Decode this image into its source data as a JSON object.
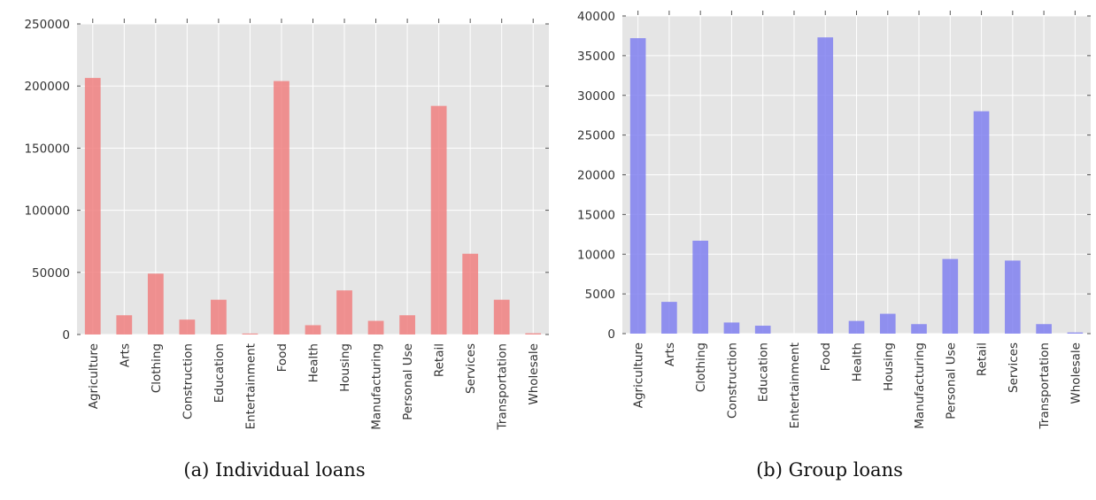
{
  "chart_data": [
    {
      "type": "bar",
      "title": "",
      "caption": "(a) Individual loans",
      "xlabel": "",
      "ylabel": "",
      "color": "#f08080",
      "grid": true,
      "ylim": [
        0,
        250000
      ],
      "yticks": [
        "0",
        "50000",
        "100000",
        "150000",
        "200000",
        "250000"
      ],
      "categories": [
        "Agriculture",
        "Arts",
        "Clothing",
        "Construction",
        "Education",
        "Entertainment",
        "Food",
        "Health",
        "Housing",
        "Manufacturing",
        "Personal Use",
        "Retail",
        "Services",
        "Transportation",
        "Wholesale"
      ],
      "values": [
        206500,
        15500,
        49000,
        12000,
        28000,
        800,
        204000,
        7500,
        35500,
        11000,
        15500,
        184000,
        65000,
        28000,
        1000
      ]
    },
    {
      "type": "bar",
      "title": "",
      "caption": "(b) Group loans",
      "xlabel": "",
      "ylabel": "",
      "color": "#8080f0",
      "grid": true,
      "ylim": [
        0,
        40000
      ],
      "yticks": [
        "0",
        "5000",
        "10000",
        "15000",
        "20000",
        "25000",
        "30000",
        "35000",
        "40000"
      ],
      "categories": [
        "Agriculture",
        "Arts",
        "Clothing",
        "Construction",
        "Education",
        "Entertainment",
        "Food",
        "Health",
        "Housing",
        "Manufacturing",
        "Personal Use",
        "Retail",
        "Services",
        "Transportation",
        "Wholesale"
      ],
      "values": [
        37200,
        4000,
        11700,
        1400,
        1000,
        0,
        37300,
        1600,
        2500,
        1200,
        9400,
        28000,
        9200,
        1200,
        150
      ]
    }
  ]
}
